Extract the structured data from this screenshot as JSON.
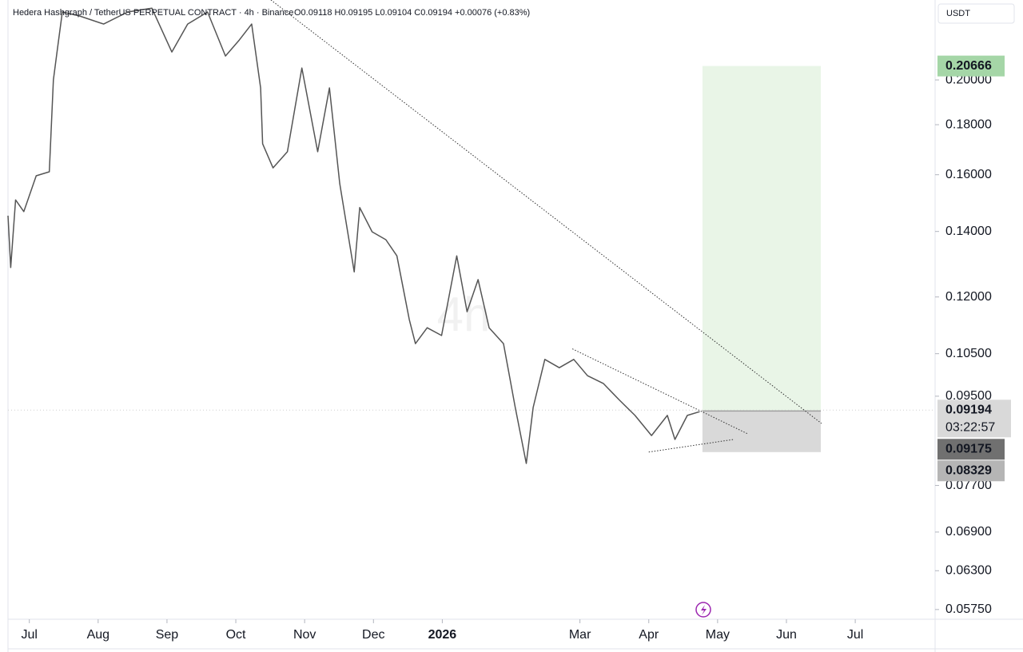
{
  "chart_data": {
    "type": "line",
    "title": "Hedera Hashgraph / TetherUS PERPETUAL CONTRACT · 4h · Binance",
    "ohlc_text": "O0.09118 H0.09195 L0.09104 C0.09194 +0.00076 (+0.83%)",
    "currency": "USDT",
    "watermark": "4h",
    "log_scale": true,
    "xlim": [
      -0.31,
      13.16
    ],
    "xticks": [
      {
        "value": 0,
        "label": "Jul"
      },
      {
        "value": 1,
        "label": "Aug"
      },
      {
        "value": 2,
        "label": "Sep"
      },
      {
        "value": 3,
        "label": "Oct"
      },
      {
        "value": 4,
        "label": "Nov"
      },
      {
        "value": 5,
        "label": "Dec"
      },
      {
        "value": 6,
        "label": "2026"
      },
      {
        "value": 8,
        "label": "Mar"
      },
      {
        "value": 9,
        "label": "Apr"
      },
      {
        "value": 10,
        "label": "May"
      },
      {
        "value": 11,
        "label": "Jun"
      },
      {
        "value": 12,
        "label": "Jul"
      }
    ],
    "ylim": [
      0.0562,
      0.2414
    ],
    "yticks": [
      {
        "value": 0.2,
        "label": "0.20000"
      },
      {
        "value": 0.18,
        "label": "0.18000"
      },
      {
        "value": 0.16,
        "label": "0.16000"
      },
      {
        "value": 0.14,
        "label": "0.14000"
      },
      {
        "value": 0.12,
        "label": "0.12000"
      },
      {
        "value": 0.105,
        "label": "0.10500"
      },
      {
        "value": 0.095,
        "label": "0.09500"
      },
      {
        "value": 0.077,
        "label": "0.07700"
      },
      {
        "value": 0.069,
        "label": "0.06900"
      },
      {
        "value": 0.063,
        "label": "0.06300"
      },
      {
        "value": 0.0575,
        "label": "0.05750"
      }
    ],
    "series": [
      {
        "color": "#555555",
        "x": [
          -0.31,
          -0.27,
          -0.2,
          -0.08,
          0.1,
          0.29,
          0.35,
          0.41,
          0.48,
          0.73,
          1.08,
          1.43,
          1.78,
          2.07,
          2.3,
          2.59,
          2.85,
          3.05,
          3.23,
          3.36,
          3.39,
          3.54,
          3.75,
          3.96,
          4.19,
          4.36,
          4.51,
          4.72,
          4.8,
          4.98,
          5.18,
          5.34,
          5.52,
          5.61,
          5.78,
          5.99,
          6.21,
          6.36,
          6.52,
          6.68,
          6.89,
          7.06,
          7.22,
          7.32,
          7.49,
          7.7,
          7.91,
          8.11,
          8.34,
          8.57,
          8.8,
          9.04,
          9.27,
          9.38,
          9.56,
          9.74
        ],
        "values": [
          0.1453,
          0.1286,
          0.1508,
          0.1467,
          0.1596,
          0.1611,
          0.2,
          0.2156,
          0.2347,
          0.2325,
          0.2281,
          0.2347,
          0.2368,
          0.2136,
          0.2281,
          0.2347,
          0.2116,
          0.2197,
          0.2281,
          0.1963,
          0.1721,
          0.1626,
          0.1689,
          0.2057,
          0.1689,
          0.1963,
          0.1567,
          0.1273,
          0.1481,
          0.1399,
          0.1373,
          0.1322,
          0.1138,
          0.1075,
          0.1116,
          0.1096,
          0.1322,
          0.1159,
          0.125,
          0.1116,
          0.1075,
          0.0925,
          0.0811,
          0.0925,
          0.1036,
          0.1016,
          0.1036,
          0.0997,
          0.0979,
          0.0942,
          0.0908,
          0.0866,
          0.0908,
          0.0858,
          0.0908,
          0.0916
        ]
      }
    ],
    "last_price": 0.09194,
    "countdown": "03:22:57",
    "position": {
      "entry": 0.09175,
      "target": 0.20666,
      "stop": 0.08329,
      "x_start": 9.78,
      "x_end": 11.5
    },
    "trendlines": [
      {
        "x": [
          3.51,
          11.51
        ],
        "values": [
          0.2414,
          0.0891
        ]
      },
      {
        "x": [
          7.89,
          10.43
        ],
        "values": [
          0.1062,
          0.087
        ]
      },
      {
        "x": [
          9.0,
          10.23
        ],
        "values": [
          0.0833,
          0.0858
        ]
      }
    ]
  }
}
